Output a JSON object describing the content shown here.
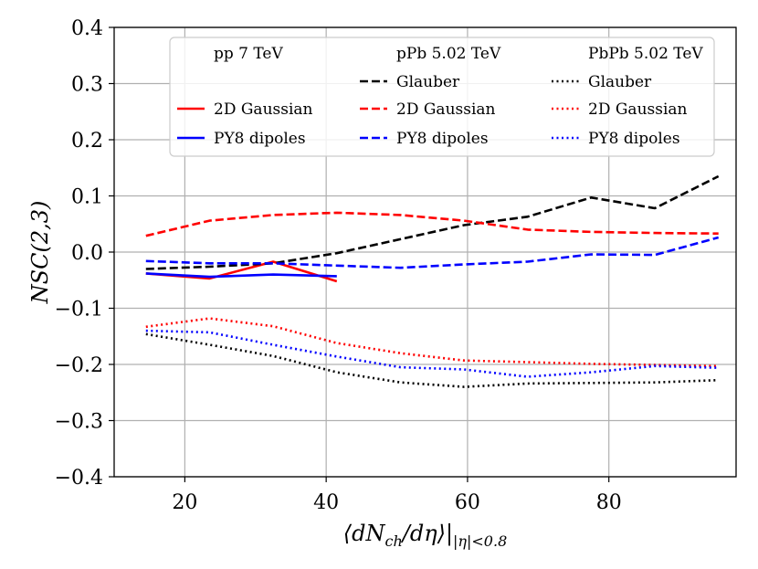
{
  "chart_data": {
    "type": "line",
    "xlabel": "⟨dN_ch/dη⟩|_{|η|<0.8}",
    "ylabel": "NSC(2,3)",
    "xlim": [
      10,
      98
    ],
    "ylim": [
      -0.4,
      0.4
    ],
    "xticks": [
      20,
      40,
      60,
      80
    ],
    "xtick_labels": [
      "20",
      "40",
      "60",
      "80"
    ],
    "yticks": [
      -0.4,
      -0.3,
      -0.2,
      -0.1,
      0.0,
      0.1,
      0.2,
      0.3,
      0.4
    ],
    "ytick_labels": [
      "−0.4",
      "−0.3",
      "−0.2",
      "−0.1",
      "0.0",
      "0.1",
      "0.2",
      "0.3",
      "0.4"
    ],
    "grid": true,
    "legend_position": "top-right",
    "legend_headers": [
      "pp 7 TeV",
      "pPb 5.02 TeV",
      "PbPb 5.02 TeV"
    ],
    "series": [
      {
        "name": "2D Gaussian",
        "group": "pp 7 TeV",
        "color": "#ff0000",
        "style": "solid",
        "x": [
          14.5,
          23.5,
          32.5,
          41.5
        ],
        "y": [
          -0.038,
          -0.047,
          -0.017,
          -0.052
        ]
      },
      {
        "name": "PY8 dipoles",
        "group": "pp 7 TeV",
        "color": "#0000ff",
        "style": "solid",
        "x": [
          14.5,
          23.5,
          32.5,
          41.5
        ],
        "y": [
          -0.038,
          -0.044,
          -0.04,
          -0.043
        ]
      },
      {
        "name": "Glauber",
        "group": "pPb 5.02 TeV",
        "color": "#000000",
        "style": "dashed",
        "x": [
          14.5,
          23.5,
          32.5,
          41.5,
          50.5,
          59.5,
          68.5,
          77.5,
          86.5,
          95.5
        ],
        "y": [
          -0.03,
          -0.026,
          -0.02,
          -0.002,
          0.023,
          0.048,
          0.063,
          0.097,
          0.078,
          0.135
        ]
      },
      {
        "name": "2D Gaussian",
        "group": "pPb 5.02 TeV",
        "color": "#ff0000",
        "style": "dashed",
        "x": [
          14.5,
          23.5,
          32.5,
          41.5,
          50.5,
          59.5,
          68.5,
          77.5,
          86.5,
          95.5
        ],
        "y": [
          0.029,
          0.056,
          0.066,
          0.07,
          0.066,
          0.056,
          0.04,
          0.036,
          0.034,
          0.033
        ]
      },
      {
        "name": "PY8 dipoles",
        "group": "pPb 5.02 TeV",
        "color": "#0000ff",
        "style": "dashed",
        "x": [
          14.5,
          23.5,
          32.5,
          41.5,
          50.5,
          59.5,
          68.5,
          77.5,
          86.5,
          95.5
        ],
        "y": [
          -0.016,
          -0.02,
          -0.02,
          -0.024,
          -0.028,
          -0.022,
          -0.017,
          -0.004,
          -0.005,
          0.026
        ]
      },
      {
        "name": "Glauber",
        "group": "PbPb 5.02 TeV",
        "color": "#000000",
        "style": "dotted",
        "x": [
          14.5,
          23.5,
          32.5,
          41.5,
          50.5,
          59.5,
          68.5,
          77.5,
          86.5,
          95.5
        ],
        "y": [
          -0.146,
          -0.165,
          -0.185,
          -0.214,
          -0.232,
          -0.24,
          -0.234,
          -0.233,
          -0.232,
          -0.228
        ]
      },
      {
        "name": "2D Gaussian",
        "group": "PbPb 5.02 TeV",
        "color": "#ff0000",
        "style": "dotted",
        "x": [
          14.5,
          23.5,
          32.5,
          41.5,
          50.5,
          59.5,
          68.5,
          77.5,
          86.5,
          95.5
        ],
        "y": [
          -0.133,
          -0.118,
          -0.132,
          -0.162,
          -0.18,
          -0.193,
          -0.196,
          -0.199,
          -0.201,
          -0.203
        ]
      },
      {
        "name": "PY8 dipoles",
        "group": "PbPb 5.02 TeV",
        "color": "#0000ff",
        "style": "dotted",
        "x": [
          14.5,
          23.5,
          32.5,
          41.5,
          50.5,
          59.5,
          68.5,
          77.5,
          86.5,
          95.5
        ],
        "y": [
          -0.14,
          -0.143,
          -0.165,
          -0.186,
          -0.205,
          -0.209,
          -0.222,
          -0.214,
          -0.203,
          -0.206
        ]
      }
    ]
  }
}
